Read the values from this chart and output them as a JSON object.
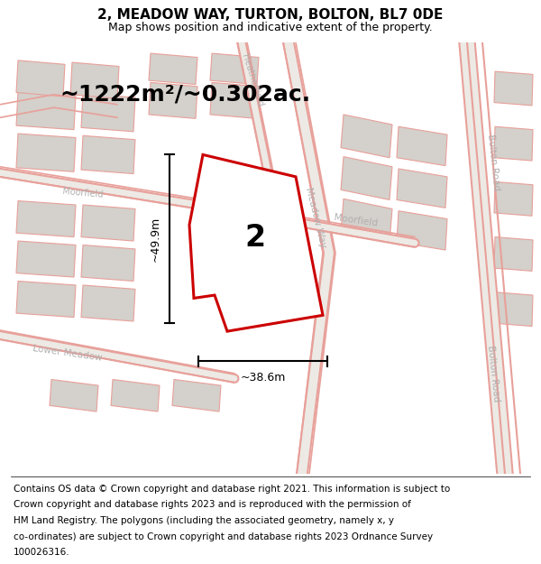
{
  "title": "2, MEADOW WAY, TURTON, BOLTON, BL7 0DE",
  "subtitle": "Map shows position and indicative extent of the property.",
  "area_text": "~1222m²/~0.302ac.",
  "dim_width": "~38.6m",
  "dim_height": "~49.9m",
  "plot_number": "2",
  "footer_lines": [
    "Contains OS data © Crown copyright and database right 2021. This information is subject to",
    "Crown copyright and database rights 2023 and is reproduced with the permission of",
    "HM Land Registry. The polygons (including the associated geometry, namely x, y",
    "co-ordinates) are subject to Crown copyright and database rights 2023 Ordnance Survey",
    "100026316."
  ],
  "bg_map_color": "#edeae5",
  "building_color": "#d4d0cb",
  "road_line_color": "#e8a09a",
  "plot_outline_color": "#cc0000",
  "plot_fill_color": "#ffffff",
  "road_label_color": "#b0b0b0",
  "title_fontsize": 11,
  "subtitle_fontsize": 9,
  "area_fontsize": 18,
  "footer_fontsize": 7.5
}
